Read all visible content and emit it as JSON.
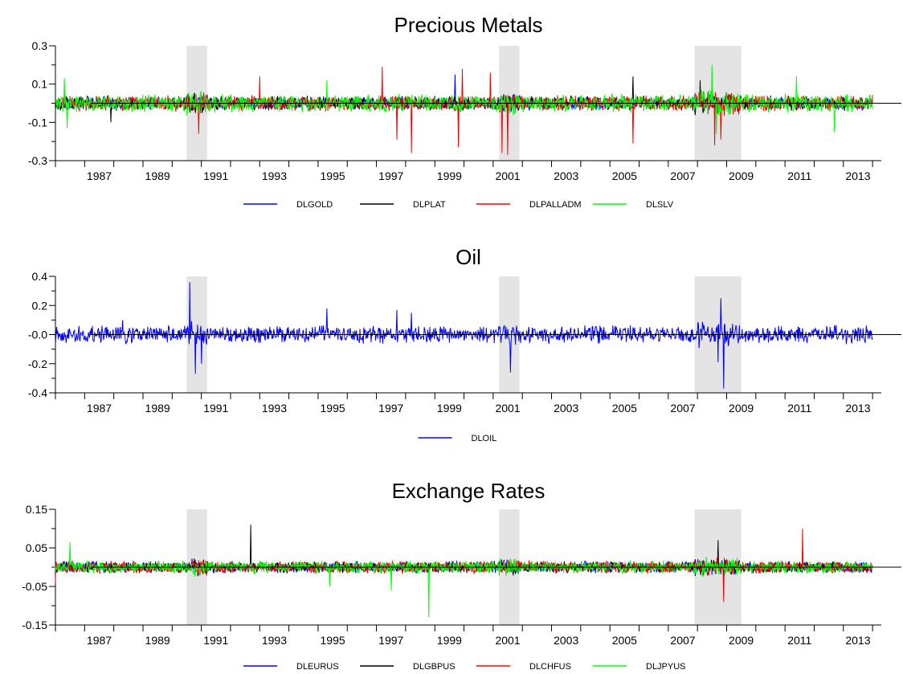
{
  "figure_title": "",
  "chart_data": [
    {
      "type": "line",
      "title": "Precious Metals",
      "xlabel": "",
      "ylabel": "",
      "xlim": [
        1986.0,
        2014.3
      ],
      "ylim": [
        -0.3,
        0.3
      ],
      "yticks": [
        "0.3",
        "0.1",
        "-0.1",
        "-0.3"
      ],
      "ytick_values": [
        0.3,
        0.1,
        -0.1,
        -0.3
      ],
      "xticks": [
        "1987",
        "1989",
        "1991",
        "1993",
        "1995",
        "1997",
        "1999",
        "2001",
        "2003",
        "2005",
        "2007",
        "2009",
        "2011",
        "2013"
      ],
      "recession_bands": [
        [
          1990.5,
          1991.2
        ],
        [
          2001.2,
          2001.9
        ],
        [
          2007.9,
          2009.5
        ]
      ],
      "grid": false,
      "legend_position": "bottom",
      "series": [
        {
          "name": "DLGOLD",
          "color": "#0000ff",
          "start": 1986.0,
          "end": 2014.0,
          "spread": 0.025,
          "spikes": [
            [
              1999.7,
              0.15
            ],
            [
              1999.8,
              -0.09
            ]
          ]
        },
        {
          "name": "DLPLAT",
          "color": "#000000",
          "start": 1986.0,
          "end": 2014.0,
          "spread": 0.028,
          "spikes": [
            [
              1987.9,
              -0.1
            ],
            [
              2005.8,
              0.14
            ],
            [
              2008.1,
              0.12
            ]
          ]
        },
        {
          "name": "DLPALLADM",
          "color": "#ff0000",
          "start": 1986.0,
          "end": 2014.0,
          "spread": 0.03,
          "spikes": [
            [
              1990.9,
              -0.16
            ],
            [
              1993.0,
              0.14
            ],
            [
              1997.2,
              0.19
            ],
            [
              1997.7,
              -0.19
            ],
            [
              1998.2,
              -0.26
            ],
            [
              1999.8,
              -0.23
            ],
            [
              1999.95,
              0.18
            ],
            [
              2000.9,
              0.16
            ],
            [
              2001.3,
              -0.26
            ],
            [
              2001.5,
              -0.27
            ],
            [
              2005.8,
              -0.21
            ],
            [
              2008.6,
              -0.22
            ],
            [
              2008.8,
              -0.19
            ]
          ]
        },
        {
          "name": "DLSLV",
          "color": "#00ff00",
          "start": 1986.0,
          "end": 2014.0,
          "spread": 0.035,
          "spikes": [
            [
              1986.4,
              -0.13
            ],
            [
              1986.3,
              0.13
            ],
            [
              1995.3,
              0.12
            ],
            [
              2008.5,
              0.2
            ],
            [
              2008.65,
              -0.16
            ],
            [
              2012.7,
              -0.15
            ],
            [
              2011.4,
              0.14
            ]
          ]
        }
      ]
    },
    {
      "type": "line",
      "title": "Oil",
      "xlabel": "",
      "ylabel": "",
      "xlim": [
        1986.0,
        2014.3
      ],
      "ylim": [
        -0.4,
        0.4
      ],
      "yticks": [
        "0.4",
        "0.2",
        "-0.0",
        "-0.2",
        "-0.4"
      ],
      "ytick_values": [
        0.4,
        0.2,
        0.0,
        -0.2,
        -0.4
      ],
      "xticks": [
        "1987",
        "1989",
        "1991",
        "1993",
        "1995",
        "1997",
        "1999",
        "2001",
        "2003",
        "2005",
        "2007",
        "2009",
        "2011",
        "2013"
      ],
      "recession_bands": [
        [
          1990.5,
          1991.2
        ],
        [
          2001.2,
          2001.9
        ],
        [
          2007.9,
          2009.5
        ]
      ],
      "grid": false,
      "legend_position": "bottom",
      "series": [
        {
          "name": "DLOIL",
          "color": "#0000ff",
          "start": 1986.0,
          "end": 2014.0,
          "spread": 0.045,
          "spikes": [
            [
              1990.6,
              0.36
            ],
            [
              1990.8,
              -0.27
            ],
            [
              1991.0,
              -0.2
            ],
            [
              1995.3,
              0.18
            ],
            [
              1997.7,
              0.17
            ],
            [
              1998.2,
              0.15
            ],
            [
              2001.6,
              -0.26
            ],
            [
              2008.8,
              0.25
            ],
            [
              2008.9,
              -0.37
            ],
            [
              2008.7,
              -0.19
            ],
            [
              1988.3,
              0.1
            ]
          ]
        }
      ]
    },
    {
      "type": "line",
      "title": "Exchange Rates",
      "xlabel": "",
      "ylabel": "",
      "xlim": [
        1986.0,
        2014.3
      ],
      "ylim": [
        -0.15,
        0.15
      ],
      "yticks": [
        "0.15",
        "0.05",
        "-0.05",
        "-0.15"
      ],
      "ytick_values": [
        0.15,
        0.05,
        -0.05,
        -0.15
      ],
      "xticks": [
        "1987",
        "1989",
        "1991",
        "1993",
        "1995",
        "1997",
        "1999",
        "2001",
        "2003",
        "2005",
        "2007",
        "2009",
        "2011",
        "2013"
      ],
      "recession_bands": [
        [
          1990.5,
          1991.2
        ],
        [
          2001.2,
          2001.9
        ],
        [
          2007.9,
          2009.5
        ]
      ],
      "grid": false,
      "legend_position": "bottom",
      "series": [
        {
          "name": "DLEURUS",
          "color": "#0000ff",
          "start": 1986.0,
          "end": 2014.0,
          "spread": 0.011,
          "spikes": []
        },
        {
          "name": "DLGBPUS",
          "color": "#000000",
          "start": 1986.0,
          "end": 2014.0,
          "spread": 0.011,
          "spikes": [
            [
              1992.7,
              0.11
            ],
            [
              2008.7,
              0.07
            ],
            [
              2008.9,
              -0.05
            ]
          ]
        },
        {
          "name": "DLCHFUS",
          "color": "#ff0000",
          "start": 1986.0,
          "end": 2014.0,
          "spread": 0.012,
          "spikes": [
            [
              1986.0,
              -0.04
            ],
            [
              2008.9,
              -0.09
            ],
            [
              2011.6,
              0.1
            ]
          ]
        },
        {
          "name": "DLJPYUS",
          "color": "#00ff00",
          "start": 1986.0,
          "end": 2014.0,
          "spread": 0.012,
          "spikes": [
            [
              1986.5,
              0.065
            ],
            [
              1998.8,
              -0.13
            ],
            [
              1995.4,
              -0.05
            ],
            [
              1997.5,
              -0.06
            ]
          ]
        }
      ]
    }
  ]
}
